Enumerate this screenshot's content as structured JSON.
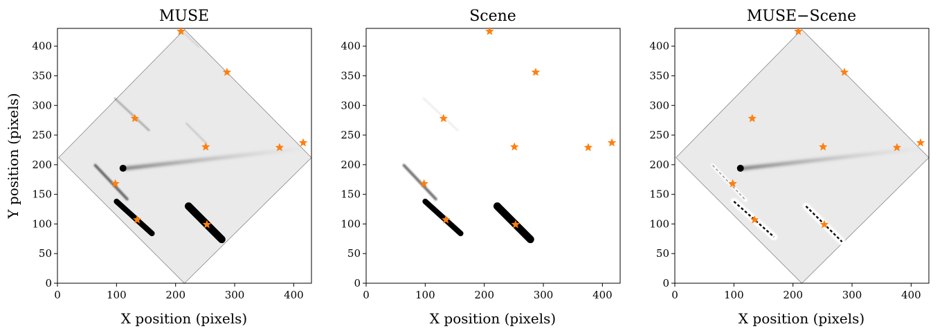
{
  "colors": {
    "star": "#ff7f0e",
    "background_field": "#e9e9e9",
    "streak": "#000000",
    "frame": "#000000"
  },
  "figure": {
    "ylabel": "Y position (pixels)"
  },
  "chart_data": [
    {
      "type": "scatter",
      "title": "MUSE",
      "xlabel": "X position (pixels)",
      "ylabel": "Y position (pixels)",
      "xlim": [
        0,
        430
      ],
      "ylim": [
        0,
        430
      ],
      "xticks": [
        0,
        100,
        200,
        300,
        400
      ],
      "yticks": [
        0,
        50,
        100,
        150,
        200,
        250,
        300,
        350,
        400
      ],
      "image": "diamond-field-with-streaks",
      "grid": false,
      "series": [
        {
          "marker": "star",
          "x": [
            209,
            287,
            131,
            251,
            376,
            416,
            98,
            135,
            253
          ],
          "y": [
            425,
            356,
            278,
            230,
            229,
            237,
            168,
            107,
            99
          ]
        }
      ]
    },
    {
      "type": "scatter",
      "title": "Scene",
      "xlabel": "X position (pixels)",
      "xlim": [
        0,
        430
      ],
      "ylim": [
        0,
        430
      ],
      "xticks": [
        0,
        100,
        200,
        300,
        400
      ],
      "yticks": [
        0,
        50,
        100,
        150,
        200,
        250,
        300,
        350,
        400
      ],
      "image": "streaks-only",
      "grid": false,
      "series": [
        {
          "marker": "star",
          "x": [
            209,
            287,
            131,
            251,
            376,
            416,
            98,
            135,
            253
          ],
          "y": [
            425,
            356,
            278,
            230,
            229,
            237,
            168,
            107,
            99
          ]
        }
      ]
    },
    {
      "type": "scatter",
      "title": "MUSE−Scene",
      "xlabel": "X position (pixels)",
      "xlim": [
        0,
        430
      ],
      "ylim": [
        0,
        430
      ],
      "xticks": [
        0,
        100,
        200,
        300,
        400
      ],
      "yticks": [
        0,
        50,
        100,
        150,
        200,
        250,
        300,
        350,
        400
      ],
      "image": "residual-field",
      "grid": false,
      "series": [
        {
          "marker": "star",
          "x": [
            209,
            287,
            131,
            251,
            376,
            416,
            98,
            135,
            253
          ],
          "y": [
            425,
            356,
            278,
            230,
            229,
            237,
            168,
            107,
            99
          ]
        }
      ]
    }
  ]
}
